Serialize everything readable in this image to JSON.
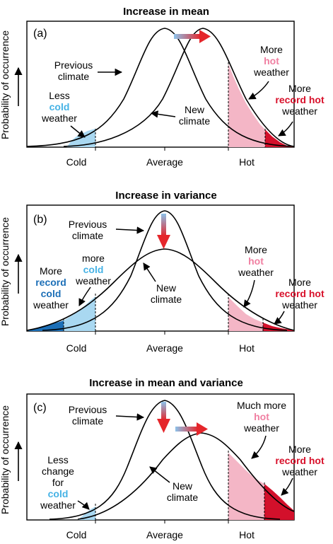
{
  "colors": {
    "cold_light": "#a9d8f1",
    "cold_dark": "#1c6fb7",
    "hot_light": "#f4b6c6",
    "hot_dark": "#d3102b",
    "arrow_red": "#e5262b",
    "arrow_blue": "#7ab6e6",
    "text_pink": "#f07fa1",
    "text_blue_light": "#45b2e5",
    "text_red": "#d8102a"
  },
  "y_axis_label": "Probability of occurrence",
  "x_ticks": [
    "Cold",
    "Average",
    "Hot"
  ],
  "panels": [
    {
      "title": "Increase in mean",
      "tag": "(a)",
      "labels": {
        "prev_1": "Previous",
        "prev_2": "climate",
        "new_1": "New",
        "new_2": "climate",
        "left_1": "Less",
        "left_2": "cold",
        "left_3": "weather",
        "hot_1": "More",
        "hot_2": "hot",
        "hot_3": "weather",
        "rec_1": "More",
        "rec_2": "record hot",
        "rec_3": "weather"
      }
    },
    {
      "title": "Increase in variance",
      "tag": "(b)",
      "labels": {
        "prev_1": "Previous",
        "prev_2": "climate",
        "new_1": "New",
        "new_2": "climate",
        "cold_1": "more",
        "cold_2": "cold",
        "cold_3": "weather",
        "rcold_1": "More",
        "rcold_2": "record",
        "rcold_3": "cold",
        "rcold_4": "weather",
        "hot_1": "More",
        "hot_2": "hot",
        "hot_3": "weather",
        "rec_1": "More",
        "rec_2": "record hot",
        "rec_3": "weather"
      }
    },
    {
      "title": "Increase in mean and variance",
      "tag": "(c)",
      "labels": {
        "prev_1": "Previous",
        "prev_2": "climate",
        "new_1": "New",
        "new_2": "climate",
        "left_1": "Less",
        "left_2": "change",
        "left_3": "for",
        "left_4": "cold",
        "left_5": "weather",
        "hot_1": "Much more",
        "hot_2": "hot",
        "hot_3": "weather",
        "rec_1": "More",
        "rec_2": "record hot",
        "rec_3": "weather"
      }
    }
  ]
}
